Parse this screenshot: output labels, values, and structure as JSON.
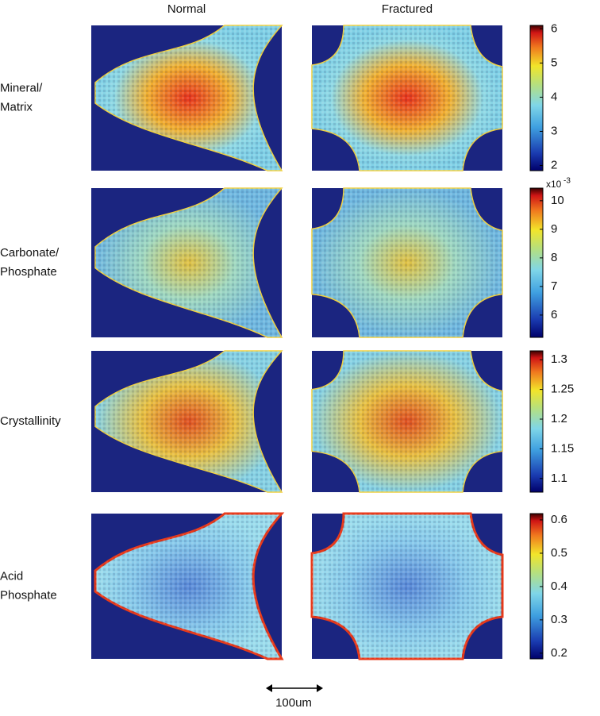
{
  "columns": [
    "Normal",
    "Fractured"
  ],
  "rows": [
    {
      "label_lines": [
        "Mineral/",
        "Matrix"
      ],
      "colorbar": {
        "ylim": [
          1.85,
          6.1
        ],
        "yticks": [
          2,
          3,
          4,
          5,
          6
        ]
      }
    },
    {
      "label_lines": [
        "Carbonate/",
        "Phosphate"
      ],
      "colorbar": {
        "ylim": [
          5.22,
          10.44
        ],
        "yticks": [
          6,
          7,
          8,
          9,
          10
        ],
        "multiplier": {
          "base": "x10",
          "exponent": "-3"
        }
      }
    },
    {
      "label_lines": [
        "Crystallinity"
      ],
      "colorbar": {
        "ylim": [
          1.077,
          1.315
        ],
        "yticks": [
          1.1,
          1.15,
          1.2,
          1.25,
          1.3
        ]
      }
    },
    {
      "label_lines": [
        "Acid",
        "Phosphate"
      ],
      "colorbar": {
        "ylim": [
          0.183,
          0.619
        ],
        "yticks": [
          0.2,
          0.3,
          0.4,
          0.5,
          0.6
        ]
      }
    }
  ],
  "scale_bar": "100um"
}
